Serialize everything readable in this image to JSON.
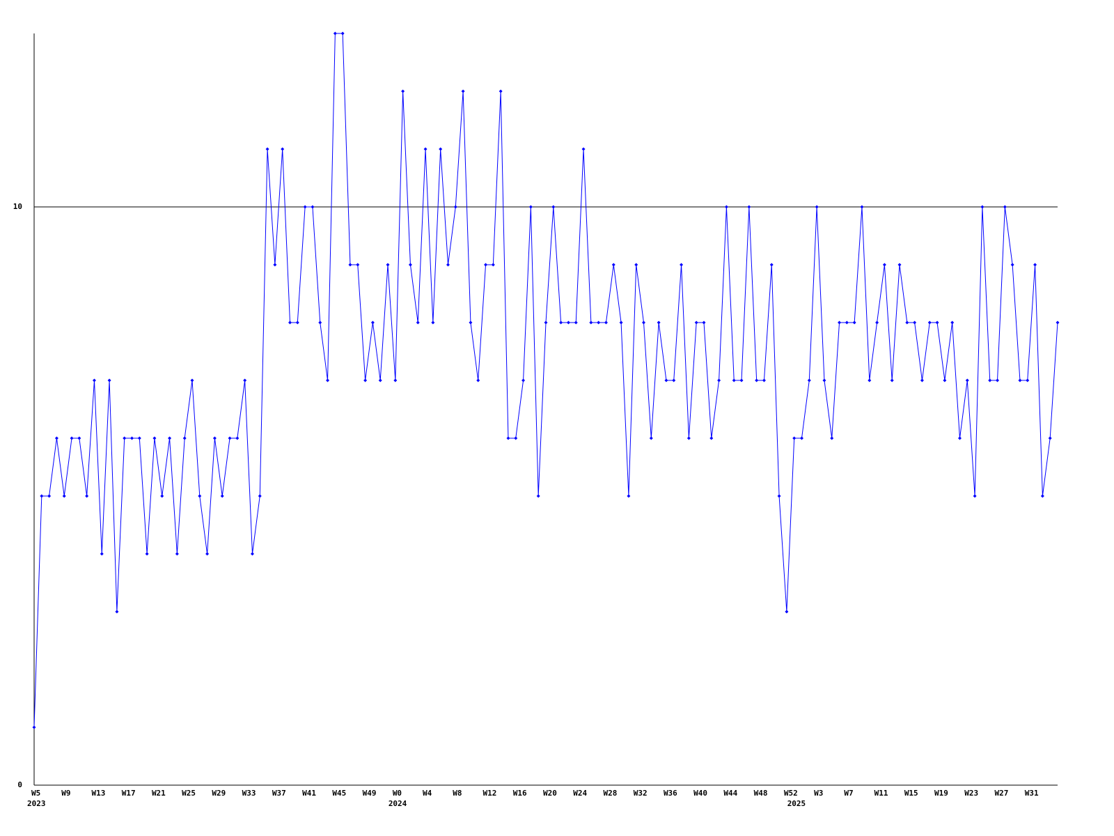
{
  "chart_data": {
    "type": "line",
    "categories": [
      "W5",
      null,
      null,
      null,
      "W9",
      null,
      null,
      null,
      "W13",
      null,
      null,
      null,
      "W17",
      null,
      null,
      null,
      "W21",
      null,
      null,
      null,
      "W25",
      null,
      null,
      null,
      "W29",
      null,
      null,
      null,
      "W33",
      null,
      null,
      null,
      "W37",
      null,
      null,
      null,
      "W41",
      null,
      null,
      null,
      "W45",
      null,
      null,
      null,
      "W49",
      null,
      null,
      null,
      "W0",
      null,
      null,
      null,
      "W4",
      null,
      null,
      null,
      "W8",
      null,
      null,
      null,
      "W12",
      null,
      null,
      null,
      "W16",
      null,
      null,
      null,
      "W20",
      null,
      null,
      null,
      "W24",
      null,
      null,
      null,
      "W28",
      null,
      null,
      null,
      "W32",
      null,
      null,
      null,
      "W36",
      null,
      null,
      null,
      "W40",
      null,
      null,
      null,
      "W44",
      null,
      null,
      null,
      "W48",
      null,
      null,
      null,
      "W52",
      null,
      null,
      null,
      "W3",
      null,
      null,
      null,
      "W7",
      null,
      null,
      null,
      "W11",
      null,
      null,
      null,
      "W15",
      null,
      null,
      null,
      "W19",
      null,
      null,
      null,
      "W23",
      null,
      null,
      null,
      "W27",
      null,
      null,
      null,
      "W31",
      null,
      null,
      null,
      null
    ],
    "category_years": [
      "2023",
      null,
      null,
      null,
      null,
      null,
      null,
      null,
      null,
      null,
      null,
      null,
      null,
      null,
      null,
      null,
      null,
      null,
      null,
      null,
      null,
      null,
      null,
      null,
      null,
      null,
      null,
      null,
      null,
      null,
      null,
      null,
      null,
      null,
      null,
      null,
      null,
      null,
      null,
      null,
      null,
      null,
      null,
      null,
      null,
      null,
      null,
      null,
      "2024",
      null,
      null,
      null,
      null,
      null,
      null,
      null,
      null,
      null,
      null,
      null,
      null,
      null,
      null,
      null,
      null,
      null,
      null,
      null,
      null,
      null,
      null,
      null,
      null,
      null,
      null,
      null,
      null,
      null,
      null,
      null,
      null,
      null,
      null,
      null,
      null,
      null,
      null,
      null,
      null,
      null,
      null,
      null,
      null,
      null,
      null,
      null,
      null,
      null,
      null,
      null,
      null,
      "2025",
      null,
      null,
      null,
      null,
      null,
      null,
      null,
      null,
      null,
      null,
      null,
      null,
      null,
      null,
      null,
      null,
      null,
      null,
      null,
      null,
      null,
      null,
      null,
      null,
      null,
      null,
      null,
      null,
      null,
      null,
      null,
      null,
      null,
      null,
      null
    ],
    "values": [
      1,
      5,
      5,
      6,
      5,
      6,
      6,
      5,
      7,
      4,
      7,
      3,
      6,
      6,
      6,
      4,
      6,
      5,
      6,
      4,
      6,
      7,
      5,
      4,
      6,
      5,
      6,
      6,
      7,
      4,
      5,
      11,
      9,
      11,
      8,
      8,
      10,
      10,
      8,
      7,
      13,
      13,
      9,
      9,
      7,
      8,
      7,
      9,
      7,
      12,
      9,
      8,
      11,
      8,
      11,
      9,
      10,
      12,
      8,
      7,
      9,
      9,
      12,
      6,
      6,
      7,
      10,
      5,
      8,
      10,
      8,
      8,
      8,
      11,
      8,
      8,
      8,
      9,
      8,
      5,
      9,
      8,
      6,
      8,
      7,
      7,
      9,
      6,
      8,
      8,
      6,
      7,
      10,
      7,
      7,
      10,
      7,
      7,
      9,
      5,
      3,
      6,
      6,
      7,
      10,
      7,
      6,
      8,
      8,
      8,
      10,
      7,
      8,
      9,
      7,
      9,
      8,
      8,
      7,
      8,
      8,
      7,
      8,
      6,
      7,
      5,
      10,
      7,
      7,
      10,
      9,
      7,
      7,
      9,
      5,
      6,
      8
    ],
    "color": "#0000ff",
    "ylim": [
      0,
      13
    ],
    "yticks": [
      0,
      10
    ],
    "grid": true
  }
}
